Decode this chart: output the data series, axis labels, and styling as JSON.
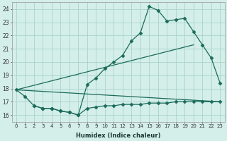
{
  "xlabel": "Humidex (Indice chaleur)",
  "bg_color": "#d4eeea",
  "grid_color": "#a8d4cc",
  "line_color": "#1a6b5a",
  "xlim": [
    -0.5,
    23.5
  ],
  "ylim": [
    15.5,
    24.5
  ],
  "yticks": [
    16,
    17,
    18,
    19,
    20,
    21,
    22,
    23,
    24
  ],
  "xticks": [
    0,
    1,
    2,
    3,
    4,
    5,
    6,
    7,
    8,
    9,
    10,
    11,
    12,
    13,
    14,
    15,
    16,
    17,
    18,
    19,
    20,
    21,
    22,
    23
  ],
  "series1_x": [
    0,
    1,
    2,
    3,
    4,
    5,
    6,
    7,
    8,
    9,
    10,
    11,
    12,
    13,
    14,
    15,
    16,
    17,
    18,
    19,
    20,
    21,
    22,
    23
  ],
  "series1_y": [
    17.9,
    17.4,
    16.7,
    16.5,
    16.5,
    16.3,
    16.2,
    16.0,
    18.3,
    18.8,
    19.5,
    20.0,
    20.5,
    21.6,
    22.2,
    24.2,
    23.9,
    23.1,
    23.2,
    23.3,
    22.3,
    21.3,
    20.3,
    18.4
  ],
  "series2_x": [
    0,
    20
  ],
  "series2_y": [
    17.9,
    21.3
  ],
  "series3_x": [
    0,
    23
  ],
  "series3_y": [
    17.9,
    17.0
  ],
  "series4_x": [
    2,
    3,
    4,
    5,
    6,
    7,
    8,
    9,
    10,
    11,
    12,
    13,
    14,
    15,
    16,
    17,
    18,
    19,
    20,
    21,
    22,
    23
  ],
  "series4_y": [
    16.7,
    16.5,
    16.5,
    16.3,
    16.2,
    16.0,
    16.5,
    16.6,
    16.7,
    16.7,
    16.8,
    16.8,
    16.8,
    16.9,
    16.9,
    16.9,
    17.0,
    17.0,
    17.0,
    17.0,
    17.0,
    17.0
  ]
}
